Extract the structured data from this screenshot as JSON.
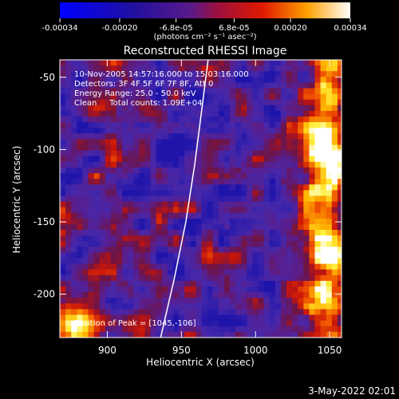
{
  "colorbar": {
    "ticks": [
      "-0.00034",
      "-0.00020",
      "-6.8e-05",
      "6.8e-05",
      "0.00020",
      "0.00034"
    ],
    "tick_values": [
      -0.00034,
      -0.0002,
      -6.8e-05,
      6.8e-05,
      0.0002,
      0.00034
    ],
    "unit_label": "(photons cm⁻² s⁻¹ asec⁻²)"
  },
  "chart_data": {
    "type": "heatmap",
    "title": "Reconstructed RHESSI Image",
    "xlabel": "Heliocentric X (arcsec)",
    "ylabel": "Heliocentric Y (arcsec)",
    "xlim": [
      868,
      1058
    ],
    "ylim": [
      -230,
      -38
    ],
    "x_ticks": [
      900,
      950,
      1000,
      1050
    ],
    "y_ticks": [
      -50,
      -100,
      -150,
      -200
    ],
    "value_range": [
      -0.00034,
      0.00034
    ],
    "colormap": "blue-purple-red-yellow-white",
    "peak_position": [
      1045,
      -106
    ],
    "limb_curve": [
      [
        936,
        -230
      ],
      [
        945,
        -190
      ],
      [
        953,
        -150
      ],
      [
        959,
        -110
      ],
      [
        964,
        -70
      ],
      [
        968,
        -38
      ]
    ],
    "annotations": [
      "10-Nov-2005 14:57:16.000 to 15:03:16.000",
      "Detectors: 3F 4F 5F 6F 7F 8F, Att 0",
      "Energy Range: 25.0 - 50.0 keV",
      "Clean     Total counts: 1.09E+04",
      "Position of Peak = [1045,-106]"
    ]
  },
  "footer": {
    "date": "3-May-2022 02:01"
  }
}
